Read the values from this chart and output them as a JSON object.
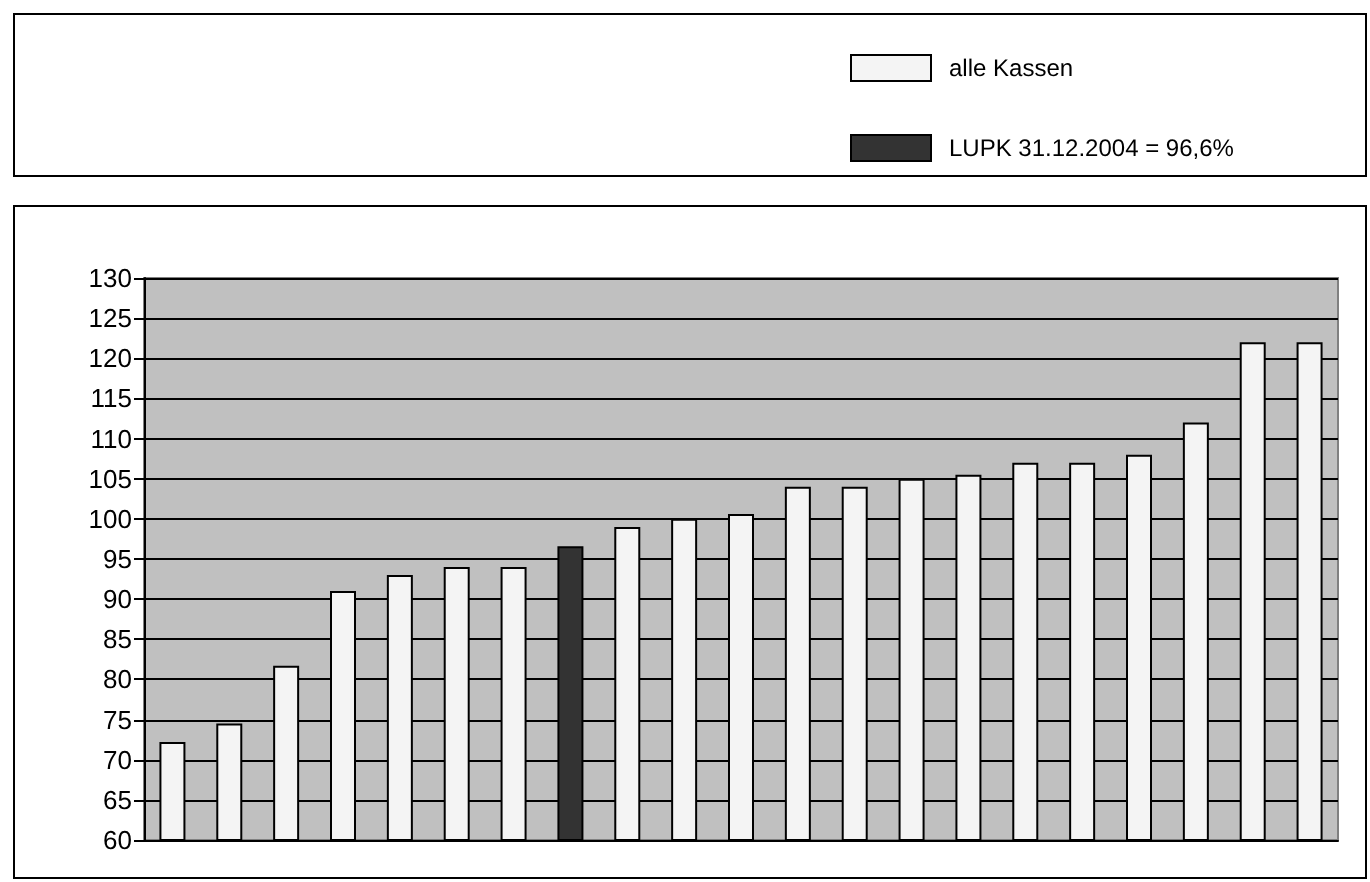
{
  "chart_data": {
    "type": "bar",
    "categories": [
      null,
      null,
      null,
      null,
      null,
      null,
      null,
      null,
      null,
      null,
      null,
      null,
      null,
      null,
      null,
      null,
      null,
      null,
      null,
      null,
      null
    ],
    "series": [
      {
        "name": "alle Kassen",
        "color": "#f4f4f4",
        "values": [
          72.2,
          74.5,
          81.7,
          91,
          93,
          94,
          94,
          null,
          99,
          100,
          100.6,
          104,
          104,
          105,
          105.5,
          107,
          107,
          108,
          112,
          122,
          122
        ]
      },
      {
        "name": "LUPK 31.12.2004 = 96,6%",
        "color": "#333333",
        "values": [
          null,
          null,
          null,
          null,
          null,
          null,
          null,
          96.6,
          null,
          null,
          null,
          null,
          null,
          null,
          null,
          null,
          null,
          null,
          null,
          null,
          null
        ]
      }
    ],
    "ylim": [
      60,
      130
    ],
    "yticks": [
      60,
      65,
      70,
      75,
      80,
      85,
      90,
      95,
      100,
      105,
      110,
      115,
      120,
      125,
      130
    ],
    "grid": "y",
    "legend": "top",
    "tick_labels": "y"
  }
}
